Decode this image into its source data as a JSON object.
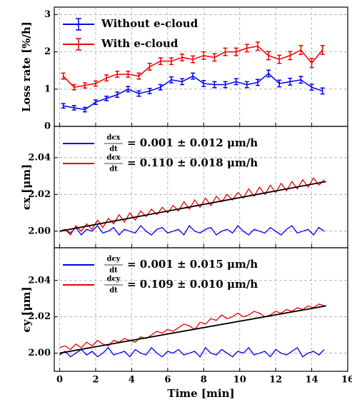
{
  "chart_data": [
    {
      "type": "errorbar",
      "ylabel": "Loss rate [%/h]",
      "xlim": [
        -0.3,
        16
      ],
      "ylim": [
        0,
        3.2
      ],
      "yticks": [
        0,
        1,
        2,
        3
      ],
      "xticks": [
        0,
        2,
        4,
        6,
        8,
        10,
        12,
        14,
        16
      ],
      "grid": true,
      "legend": "upper left",
      "x": [
        0.2,
        0.8,
        1.4,
        2,
        2.6,
        3.2,
        3.8,
        4.4,
        5,
        5.6,
        6.2,
        6.8,
        7.4,
        8,
        8.6,
        9.2,
        9.8,
        10.4,
        11,
        11.6,
        12.2,
        12.8,
        13.4,
        14,
        14.6
      ],
      "series": [
        {
          "name": "Without e-cloud",
          "color": "#0000ee",
          "values": [
            0.55,
            0.5,
            0.45,
            0.65,
            0.75,
            0.85,
            1.0,
            0.88,
            0.95,
            1.05,
            1.25,
            1.2,
            1.35,
            1.15,
            1.12,
            1.12,
            1.2,
            1.12,
            1.18,
            1.42,
            1.15,
            1.2,
            1.25,
            1.05,
            0.95
          ],
          "errors": [
            0.06,
            0.06,
            0.06,
            0.06,
            0.06,
            0.07,
            0.07,
            0.07,
            0.07,
            0.07,
            0.08,
            0.08,
            0.08,
            0.08,
            0.08,
            0.08,
            0.08,
            0.08,
            0.08,
            0.09,
            0.09,
            0.09,
            0.09,
            0.08,
            0.08
          ]
        },
        {
          "name": "With e-cloud",
          "color": "#ee0000",
          "values": [
            1.35,
            1.05,
            1.1,
            1.15,
            1.3,
            1.4,
            1.4,
            1.35,
            1.6,
            1.75,
            1.75,
            1.85,
            1.8,
            1.9,
            1.85,
            2.0,
            2.0,
            2.1,
            2.15,
            1.9,
            1.8,
            1.9,
            2.05,
            1.7,
            2.05
          ],
          "errors": [
            0.08,
            0.07,
            0.07,
            0.07,
            0.08,
            0.08,
            0.08,
            0.08,
            0.09,
            0.09,
            0.09,
            0.09,
            0.09,
            0.1,
            0.1,
            0.1,
            0.1,
            0.1,
            0.11,
            0.11,
            0.11,
            0.11,
            0.12,
            0.12,
            0.12
          ]
        }
      ]
    },
    {
      "type": "line",
      "ylabel": "ϵx [μm]",
      "rate_numerator": "dϵx",
      "rate_denominator": "dt",
      "xlim": [
        -0.3,
        16
      ],
      "ylim": [
        1.991,
        2.057
      ],
      "yticks": [
        {
          "value": 2.0,
          "label": "2.00"
        },
        {
          "value": 2.02,
          "label": "2.02"
        },
        {
          "value": 2.04,
          "label": "2.04"
        }
      ],
      "xticks": [
        0,
        2,
        4,
        6,
        8,
        10,
        12,
        14,
        16
      ],
      "grid": true,
      "legend": "upper left",
      "x": [
        0,
        0.3,
        0.6,
        0.9,
        1.2,
        1.5,
        1.8,
        2.1,
        2.4,
        2.7,
        3,
        3.3,
        3.6,
        3.9,
        4.2,
        4.5,
        4.8,
        5.1,
        5.4,
        5.7,
        6,
        6.3,
        6.6,
        6.9,
        7.2,
        7.5,
        7.8,
        8.1,
        8.4,
        8.7,
        9,
        9.3,
        9.6,
        9.9,
        10.2,
        10.5,
        10.8,
        11.1,
        11.4,
        11.7,
        12,
        12.3,
        12.6,
        12.9,
        13.2,
        13.5,
        13.8,
        14.1,
        14.4,
        14.7
      ],
      "series": [
        {
          "name": "= 0.001 ± 0.012 μm/h",
          "color": "#0000ee",
          "values": [
            2.0,
            2.001,
            1.999,
            2.002,
            1.998,
            2.001,
            2.0,
            2.003,
            1.999,
            2.0,
            2.002,
            1.998,
            2.001,
            2.0,
            1.999,
            2.003,
            2.0,
            1.998,
            2.001,
            2.002,
            1.999,
            2.0,
            2.001,
            1.998,
            2.003,
            2.0,
            1.999,
            2.001,
            2.002,
            1.998,
            2.0,
            2.001,
            1.999,
            2.003,
            2.0,
            1.998,
            2.001,
            2.0,
            1.999,
            2.002,
            2.0,
            1.998,
            2.001,
            2.003,
            1.999,
            2.0,
            2.001,
            1.998,
            2.002,
            2.0
          ]
        },
        {
          "name": "= 0.110 ± 0.018 μm/h",
          "color": "#ee0000",
          "values": [
            2.0,
            2.001,
            1.998,
            2.003,
            2.0,
            2.004,
            2.001,
            2.006,
            2.002,
            2.007,
            2.004,
            2.009,
            2.005,
            2.01,
            2.006,
            2.011,
            2.008,
            2.012,
            2.009,
            2.013,
            2.01,
            2.014,
            2.011,
            2.016,
            2.012,
            2.017,
            2.013,
            2.018,
            2.014,
            2.019,
            2.016,
            2.02,
            2.017,
            2.021,
            2.018,
            2.023,
            2.019,
            2.024,
            2.02,
            2.025,
            2.021,
            2.026,
            2.022,
            2.027,
            2.023,
            2.028,
            2.024,
            2.029,
            2.025,
            2.028
          ]
        }
      ],
      "fit": {
        "color": "#000000",
        "x": [
          0,
          14.8
        ],
        "values": [
          2.0,
          2.027
        ]
      }
    },
    {
      "type": "line",
      "ylabel": "ϵy [μm]",
      "xlabel": "Time [min]",
      "rate_numerator": "dϵy",
      "rate_denominator": "dt",
      "xlim": [
        -0.3,
        16
      ],
      "ylim": [
        1.99,
        2.058
      ],
      "yticks": [
        {
          "value": 2.0,
          "label": "2.00"
        },
        {
          "value": 2.02,
          "label": "2.02"
        },
        {
          "value": 2.04,
          "label": "2.04"
        }
      ],
      "xticks": [
        0,
        2,
        4,
        6,
        8,
        10,
        12,
        14,
        16
      ],
      "grid": true,
      "legend": "upper left",
      "x": [
        0,
        0.3,
        0.6,
        0.9,
        1.2,
        1.5,
        1.8,
        2.1,
        2.4,
        2.7,
        3,
        3.3,
        3.6,
        3.9,
        4.2,
        4.5,
        4.8,
        5.1,
        5.4,
        5.7,
        6,
        6.3,
        6.6,
        6.9,
        7.2,
        7.5,
        7.8,
        8.1,
        8.4,
        8.7,
        9,
        9.3,
        9.6,
        9.9,
        10.2,
        10.5,
        10.8,
        11.1,
        11.4,
        11.7,
        12,
        12.3,
        12.6,
        12.9,
        13.2,
        13.5,
        13.8,
        14.1,
        14.4,
        14.7
      ],
      "series": [
        {
          "name": "= 0.001 ± 0.015 μm/h",
          "color": "#0000ee",
          "values": [
            1.999,
            2.001,
            1.998,
            2.0,
            2.002,
            1.999,
            2.001,
            1.998,
            2.0,
            2.003,
            1.999,
            2.0,
            2.001,
            1.998,
            2.002,
            2.0,
            1.999,
            2.003,
            2.0,
            1.998,
            2.001,
            2.0,
            2.002,
            1.999,
            2.0,
            2.001,
            1.998,
            2.003,
            2.0,
            1.999,
            2.002,
            2.0,
            1.998,
            2.001,
            2.0,
            2.003,
            1.999,
            2.0,
            2.001,
            1.998,
            2.002,
            2.0,
            1.999,
            2.001,
            2.003,
            1.998,
            2.0,
            2.001,
            1.999,
            2.002
          ]
        },
        {
          "name": "= 0.109 ± 0.010 μm/h",
          "color": "#ee0000",
          "values": [
            2.003,
            2.004,
            2.002,
            2.005,
            2.003,
            2.006,
            2.004,
            2.007,
            2.005,
            2.004,
            2.007,
            2.006,
            2.008,
            2.007,
            2.006,
            2.009,
            2.008,
            2.01,
            2.012,
            2.011,
            2.013,
            2.012,
            2.014,
            2.016,
            2.015,
            2.013,
            2.017,
            2.016,
            2.019,
            2.018,
            2.021,
            2.019,
            2.02,
            2.022,
            2.02,
            2.021,
            2.023,
            2.022,
            2.02,
            2.021,
            2.023,
            2.022,
            2.024,
            2.023,
            2.025,
            2.024,
            2.026,
            2.025,
            2.027,
            2.026
          ]
        }
      ],
      "fit": {
        "color": "#000000",
        "x": [
          0,
          14.8
        ],
        "values": [
          2.0,
          2.026
        ]
      }
    }
  ]
}
